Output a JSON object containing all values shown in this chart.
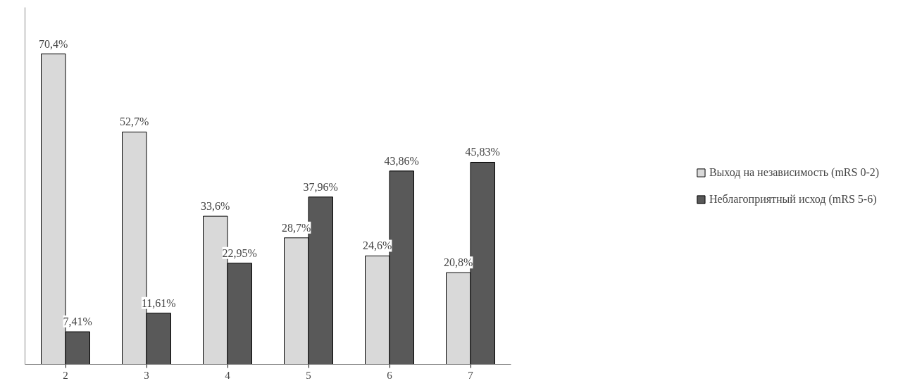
{
  "chart_data": {
    "type": "bar",
    "categories": [
      "2",
      "3",
      "4",
      "5",
      "6",
      "7"
    ],
    "series": [
      {
        "name": "Выход на независимость (mRS 0-2)",
        "color": "#d9d9d9",
        "values": [
          70.4,
          52.7,
          33.6,
          28.7,
          24.6,
          20.8
        ],
        "value_labels": [
          "70,4%",
          "52,7%",
          "33,6%",
          "28,7%",
          "24,6%",
          "20,8%"
        ]
      },
      {
        "name": "Неблагоприятный исход (mRS 5-6)",
        "color": "#595959",
        "values": [
          7.41,
          11.61,
          22.95,
          37.96,
          43.86,
          45.83
        ],
        "value_labels": [
          "7,41%",
          "11,61%",
          "22,95%",
          "37,96%",
          "43,86%",
          "45,83%"
        ]
      }
    ],
    "legend": "right",
    "grid": false,
    "tick_labels": "x"
  }
}
